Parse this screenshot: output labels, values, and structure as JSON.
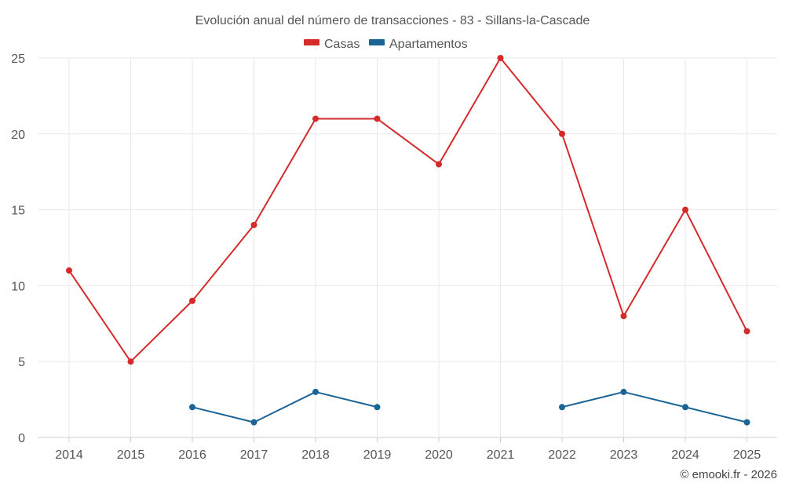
{
  "chart_data": {
    "type": "line",
    "title": "Evolución anual del número de transacciones - 83 - Sillans-la-Cascade",
    "xlabel": "",
    "ylabel": "",
    "categories": [
      "2014",
      "2015",
      "2016",
      "2017",
      "2018",
      "2019",
      "2020",
      "2021",
      "2022",
      "2023",
      "2024",
      "2025"
    ],
    "ylim": [
      0,
      25
    ],
    "yticks": [
      0,
      5,
      10,
      15,
      20,
      25
    ],
    "grid": true,
    "legend_position": "top-center",
    "series": [
      {
        "name": "Casas",
        "color": "#d42a2a",
        "values": [
          11,
          5,
          9,
          14,
          21,
          21,
          18,
          25,
          20,
          8,
          15,
          7
        ]
      },
      {
        "name": "Apartamentos",
        "color": "#1a6496",
        "values": [
          null,
          null,
          2,
          1,
          3,
          2,
          null,
          null,
          2,
          3,
          2,
          1
        ]
      }
    ],
    "credit": "© emooki.fr - 2026"
  }
}
